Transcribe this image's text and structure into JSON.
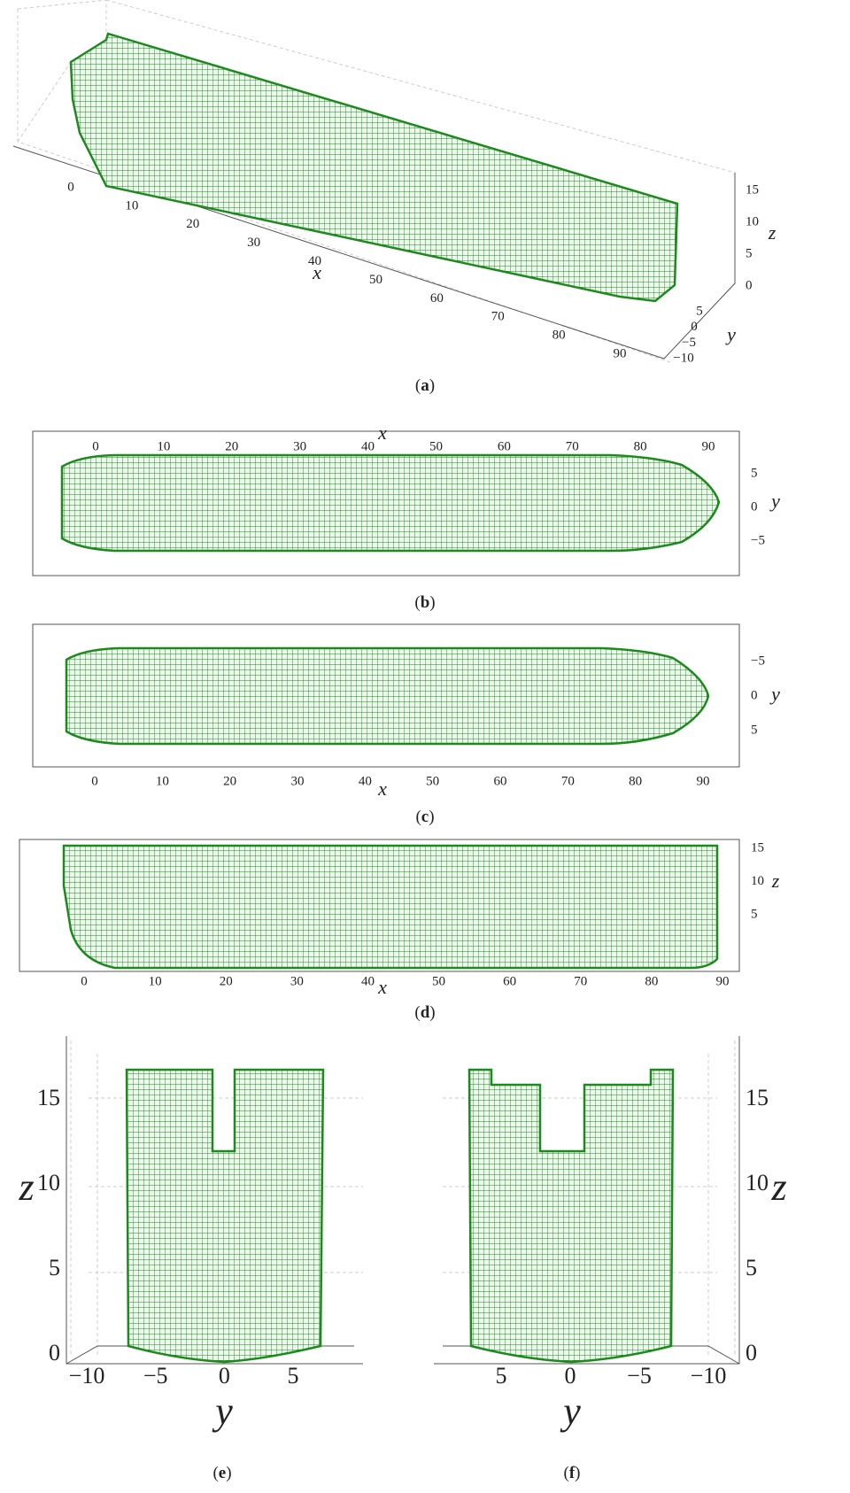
{
  "panels": [
    {
      "caption": [
        "(",
        "a",
        ")"
      ],
      "x_label": "x",
      "y_label": "y",
      "z_label": "z",
      "x_ticks": [
        "0",
        "10",
        "20",
        "30",
        "40",
        "50",
        "60",
        "70",
        "80",
        "90"
      ],
      "y_ticks": [
        "5",
        "0",
        "−5",
        "−10"
      ],
      "z_ticks": [
        "15",
        "10",
        "5",
        "0"
      ]
    },
    {
      "caption": [
        "(",
        "b",
        ")"
      ],
      "x_label": "x",
      "y_label": "y",
      "x_ticks": [
        "0",
        "10",
        "20",
        "30",
        "40",
        "50",
        "60",
        "70",
        "80",
        "90"
      ],
      "y_ticks": [
        "5",
        "0",
        "−5"
      ]
    },
    {
      "caption": [
        "(",
        "c",
        ")"
      ],
      "x_label": "x",
      "y_label": "y",
      "x_ticks": [
        "0",
        "10",
        "20",
        "30",
        "40",
        "50",
        "60",
        "70",
        "80",
        "90"
      ],
      "y_ticks": [
        "−5",
        "0",
        "5"
      ]
    },
    {
      "caption": [
        "(",
        "d",
        ")"
      ],
      "x_label": "x",
      "z_label": "z",
      "x_ticks": [
        "0",
        "10",
        "20",
        "30",
        "40",
        "50",
        "60",
        "70",
        "80",
        "90"
      ],
      "z_ticks": [
        "15",
        "10",
        "5"
      ]
    },
    {
      "caption": [
        "(",
        "e",
        ")"
      ],
      "y_label": "y",
      "z_label": "z",
      "y_ticks": [
        "−10",
        "−5",
        "0",
        "5"
      ],
      "z_ticks": [
        "15",
        "10",
        "5",
        "0"
      ]
    },
    {
      "caption": [
        "(",
        "f",
        ")"
      ],
      "y_label": "y",
      "z_label": "z",
      "y_ticks": [
        "5",
        "0",
        "−5",
        "−10"
      ],
      "z_ticks": [
        "15",
        "10",
        "5",
        "0"
      ]
    }
  ]
}
